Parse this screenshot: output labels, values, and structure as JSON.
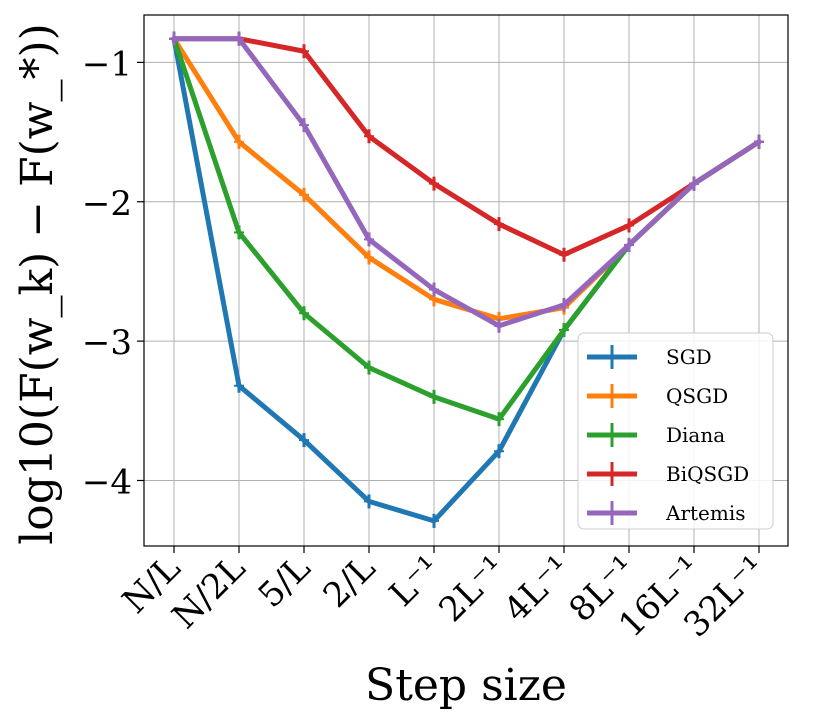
{
  "chart_data": {
    "type": "line",
    "title": "",
    "xlabel": "Step size",
    "ylabel": "log10(F(w_k) − F(w_*))",
    "categories": [
      "N/L",
      "N/2L",
      "5/L",
      "2/L",
      "L⁻¹",
      "2L⁻¹",
      "4L⁻¹",
      "8L⁻¹",
      "16L⁻¹",
      "32L⁻¹"
    ],
    "ylim": [
      -4.47,
      -0.66
    ],
    "yticks": [
      -1,
      -2,
      -3,
      -4
    ],
    "ytick_labels": [
      "−1",
      "−2",
      "−3",
      "−4"
    ],
    "grid": true,
    "legend_position": "lower-right",
    "series": [
      {
        "name": "SGD",
        "color": "#1f77b4",
        "values": [
          -0.83,
          -3.32,
          -3.71,
          -4.15,
          -4.29,
          -3.79,
          -2.92,
          -2.31,
          -1.87,
          -1.57
        ]
      },
      {
        "name": "QSGD",
        "color": "#ff7f0e",
        "values": [
          -0.83,
          -1.57,
          -1.95,
          -2.4,
          -2.7,
          -2.84,
          -2.76,
          -2.31,
          -1.87,
          -1.57
        ]
      },
      {
        "name": "Diana",
        "color": "#2ca02c",
        "values": [
          -0.83,
          -2.22,
          -2.8,
          -3.19,
          -3.4,
          -3.56,
          -2.92,
          -2.31,
          -1.87,
          -1.57
        ]
      },
      {
        "name": "BiQSGD",
        "color": "#d62728",
        "values": [
          -0.83,
          -0.83,
          -0.92,
          -1.53,
          -1.87,
          -2.16,
          -2.38,
          -2.17,
          -1.87,
          -1.57
        ]
      },
      {
        "name": "Artemis",
        "color": "#9467bd",
        "values": [
          -0.83,
          -0.83,
          -1.45,
          -2.27,
          -2.63,
          -2.89,
          -2.74,
          -2.31,
          -1.87,
          -1.57
        ]
      }
    ]
  }
}
